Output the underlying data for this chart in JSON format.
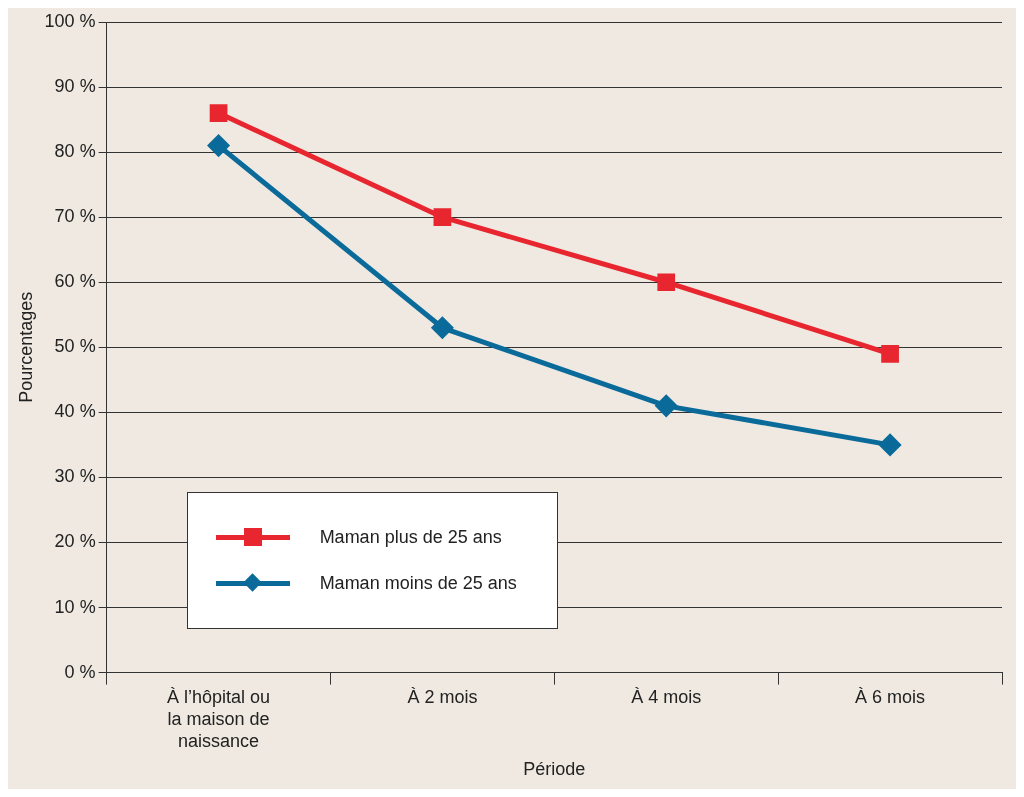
{
  "chart_data": {
    "type": "line",
    "xlabel": "Période",
    "ylabel": "Pourcentages",
    "categories": [
      "À l’hôpital ou la maison de naissance",
      "À 2 mois",
      "À 4 mois",
      "À 6 mois"
    ],
    "series": [
      {
        "name": "Maman plus de 25 ans",
        "color": "#e8262f",
        "marker": "square",
        "values": [
          86,
          70,
          60,
          49
        ]
      },
      {
        "name": "Maman moins de 25 ans",
        "color": "#0a6a99",
        "marker": "diamond",
        "values": [
          81,
          53,
          41,
          35
        ]
      }
    ],
    "ylim": [
      0,
      100
    ],
    "yticks": [
      {
        "value": 0,
        "label": "0 %"
      },
      {
        "value": 10,
        "label": "10 %"
      },
      {
        "value": 20,
        "label": "20 %"
      },
      {
        "value": 30,
        "label": "30 %"
      },
      {
        "value": 40,
        "label": "40 %"
      },
      {
        "value": 50,
        "label": "50 %"
      },
      {
        "value": 60,
        "label": "60 %"
      },
      {
        "value": 70,
        "label": "70 %"
      },
      {
        "value": 80,
        "label": "80 %"
      },
      {
        "value": 90,
        "label": "90 %"
      },
      {
        "value": 100,
        "label": "100 %"
      }
    ],
    "grid": "y",
    "legend": "bottom left",
    "line_style": "solid"
  }
}
